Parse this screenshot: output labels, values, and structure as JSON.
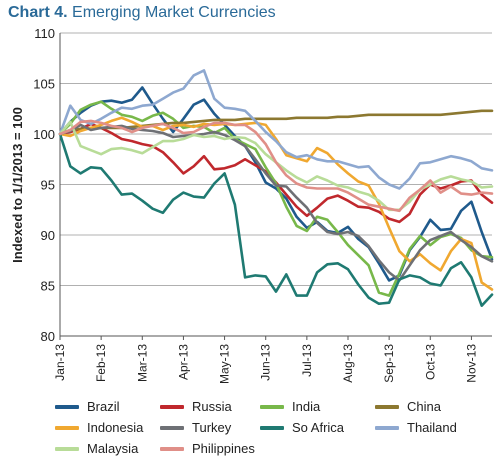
{
  "header": {
    "title_number": "Chart 4.",
    "title_text": "Emerging Market Currencies"
  },
  "chart_data": {
    "type": "line",
    "title": "Chart 4. Emerging Market Currencies",
    "xlabel": "",
    "ylabel": "Indexed to 1/1/2013 = 100",
    "ylim": [
      80,
      110
    ],
    "yticks": [
      80,
      85,
      90,
      95,
      100,
      105,
      110
    ],
    "xticks": [
      "Jan-13",
      "Feb-13",
      "Mar-13",
      "Apr-13",
      "May-13",
      "Jun-13",
      "Jul-13",
      "Aug-13",
      "Sep-13",
      "Oct-13",
      "Nov-13"
    ],
    "grid": true,
    "legend_position": "bottom",
    "x": [
      0,
      0.25,
      0.5,
      0.75,
      1,
      1.25,
      1.5,
      1.75,
      2,
      2.25,
      2.5,
      2.75,
      3,
      3.25,
      3.5,
      3.75,
      4,
      4.25,
      4.5,
      4.75,
      5,
      5.25,
      5.5,
      5.75,
      6,
      6.25,
      6.5,
      6.75,
      7,
      7.25,
      7.5,
      7.75,
      8,
      8.25,
      8.5,
      8.75,
      9,
      9.25,
      9.5,
      9.75,
      10,
      10.25,
      10.5
    ],
    "series": [
      {
        "name": "Brazil",
        "color": "#1f5a8c",
        "values": [
          100,
          101.2,
          102.1,
          102.8,
          103.2,
          103.3,
          103.1,
          103.4,
          104.6,
          103.0,
          101.5,
          100.2,
          101.5,
          102.9,
          103.4,
          102.0,
          100.9,
          99.8,
          98.8,
          97.2,
          95.2,
          94.6,
          93.6,
          91.8,
          90.7,
          91.3,
          90.4,
          90.2,
          90.8,
          89.6,
          88.8,
          87.2,
          85.5,
          86.0,
          88.5,
          89.8,
          91.5,
          90.5,
          90.6,
          92.4,
          93.3,
          90.3,
          87.6
        ]
      },
      {
        "name": "Russia",
        "color": "#c0282d",
        "values": [
          100,
          100.2,
          100.5,
          101.0,
          100.6,
          100.1,
          99.5,
          99.3,
          99.0,
          98.8,
          98.2,
          97.2,
          96.1,
          96.8,
          97.8,
          96.5,
          96.6,
          96.9,
          97.5,
          96.9,
          96.3,
          95.2,
          94.0,
          92.8,
          91.9,
          92.7,
          93.6,
          93.9,
          93.4,
          92.8,
          92.7,
          92.3,
          91.6,
          91.3,
          92.1,
          94.0,
          95.0,
          94.6,
          94.9,
          95.3,
          95.4,
          94.0,
          93.2
        ]
      },
      {
        "name": "India",
        "color": "#78b84a",
        "values": [
          100,
          101.0,
          102.4,
          102.9,
          103.2,
          102.5,
          101.9,
          101.7,
          101.3,
          101.8,
          102.1,
          101.5,
          100.6,
          100.8,
          100.7,
          100.1,
          100.6,
          99.5,
          99.0,
          98.5,
          96.7,
          95.1,
          92.8,
          90.9,
          90.4,
          91.8,
          91.5,
          90.3,
          89.0,
          88.0,
          87.0,
          84.3,
          84.0,
          86.2,
          88.6,
          89.9,
          89.0,
          89.8,
          90.1,
          89.7,
          88.5,
          87.9,
          87.8
        ]
      },
      {
        "name": "China",
        "color": "#8c7830",
        "values": [
          100,
          100.4,
          100.5,
          100.6,
          100.6,
          100.6,
          100.6,
          100.7,
          100.8,
          100.9,
          101.0,
          101.1,
          101.1,
          101.2,
          101.3,
          101.4,
          101.4,
          101.4,
          101.5,
          101.5,
          101.5,
          101.5,
          101.5,
          101.6,
          101.6,
          101.6,
          101.6,
          101.7,
          101.7,
          101.8,
          101.9,
          101.9,
          101.9,
          101.9,
          101.9,
          101.9,
          101.9,
          101.9,
          102.0,
          102.1,
          102.2,
          102.3,
          102.3
        ]
      },
      {
        "name": "Indonesia",
        "color": "#f0a830",
        "values": [
          100,
          99.8,
          100.3,
          100.6,
          100.9,
          101.3,
          101.6,
          101.2,
          100.7,
          100.8,
          100.4,
          100.8,
          100.9,
          100.7,
          101.0,
          100.9,
          101.0,
          100.9,
          101.0,
          101.1,
          100.9,
          99.5,
          97.9,
          97.6,
          97.3,
          98.6,
          98.1,
          97.0,
          96.1,
          95.3,
          94.9,
          93.1,
          90.7,
          88.4,
          87.4,
          88.1,
          87.2,
          86.5,
          88.4,
          89.6,
          89.2,
          85.3,
          84.6
        ]
      },
      {
        "name": "Turkey",
        "color": "#6e7075",
        "values": [
          100,
          100.3,
          100.9,
          100.4,
          100.6,
          100.7,
          100.8,
          100.5,
          100.4,
          100.3,
          100.1,
          99.7,
          99.8,
          99.9,
          100.0,
          100.2,
          99.9,
          99.4,
          98.8,
          97.5,
          96.1,
          94.9,
          94.8,
          93.7,
          92.7,
          91.2,
          90.3,
          90.1,
          90.3,
          89.9,
          88.9,
          87.5,
          86.3,
          85.5,
          87.0,
          88.5,
          89.5,
          89.9,
          90.3,
          89.5,
          88.8,
          87.9,
          87.4
        ]
      },
      {
        "name": "So Africa",
        "color": "#1f7a72",
        "values": [
          100,
          96.8,
          96.1,
          96.7,
          96.6,
          95.4,
          94.0,
          94.1,
          93.4,
          92.6,
          92.2,
          93.5,
          94.2,
          93.8,
          93.7,
          95.1,
          96.1,
          93.0,
          85.8,
          86.0,
          85.9,
          84.4,
          86.1,
          84.0,
          84.0,
          86.3,
          87.1,
          87.2,
          86.6,
          85.1,
          83.8,
          83.2,
          83.3,
          85.6,
          86.0,
          85.8,
          85.2,
          85.0,
          86.7,
          87.3,
          85.8,
          83.0,
          84.1
        ]
      },
      {
        "name": "Thailand",
        "color": "#8ea8d0",
        "values": [
          100,
          102.8,
          101.4,
          101.0,
          101.5,
          102.1,
          102.6,
          102.5,
          102.8,
          102.9,
          103.5,
          104.1,
          104.5,
          105.8,
          106.3,
          103.5,
          102.6,
          102.5,
          102.3,
          101.3,
          100.2,
          99.3,
          98.2,
          97.7,
          97.9,
          97.5,
          97.3,
          97.3,
          97.0,
          96.7,
          96.8,
          95.7,
          95.0,
          94.6,
          95.6,
          97.1,
          97.2,
          97.5,
          97.8,
          97.6,
          97.3,
          96.6,
          96.4
        ]
      },
      {
        "name": "Malaysia",
        "color": "#b8dc98",
        "values": [
          100,
          101.2,
          98.8,
          98.4,
          98.0,
          98.5,
          98.6,
          98.4,
          98.1,
          98.7,
          99.3,
          99.3,
          99.5,
          99.9,
          99.7,
          99.8,
          99.5,
          99.7,
          99.6,
          99.1,
          98.0,
          97.2,
          96.4,
          95.7,
          95.2,
          95.8,
          95.4,
          94.9,
          94.7,
          94.3,
          94.0,
          93.4,
          92.5,
          92.5,
          93.3,
          94.5,
          95.0,
          95.5,
          95.8,
          95.5,
          95.3,
          94.7,
          94.8
        ]
      },
      {
        "name": "Philippines",
        "color": "#e08f88",
        "values": [
          100,
          100.4,
          101.2,
          101.3,
          101.1,
          100.8,
          100.6,
          100.2,
          100.6,
          100.8,
          101.0,
          100.6,
          100.1,
          100.2,
          100.7,
          101.1,
          101.1,
          100.9,
          100.9,
          100.2,
          99.0,
          97.2,
          95.9,
          95.1,
          94.7,
          94.6,
          94.6,
          94.6,
          94.2,
          93.6,
          93.0,
          92.8,
          92.6,
          92.4,
          93.7,
          94.5,
          95.4,
          94.2,
          94.8,
          94.1,
          94.0,
          94.2,
          94.1
        ]
      }
    ]
  }
}
